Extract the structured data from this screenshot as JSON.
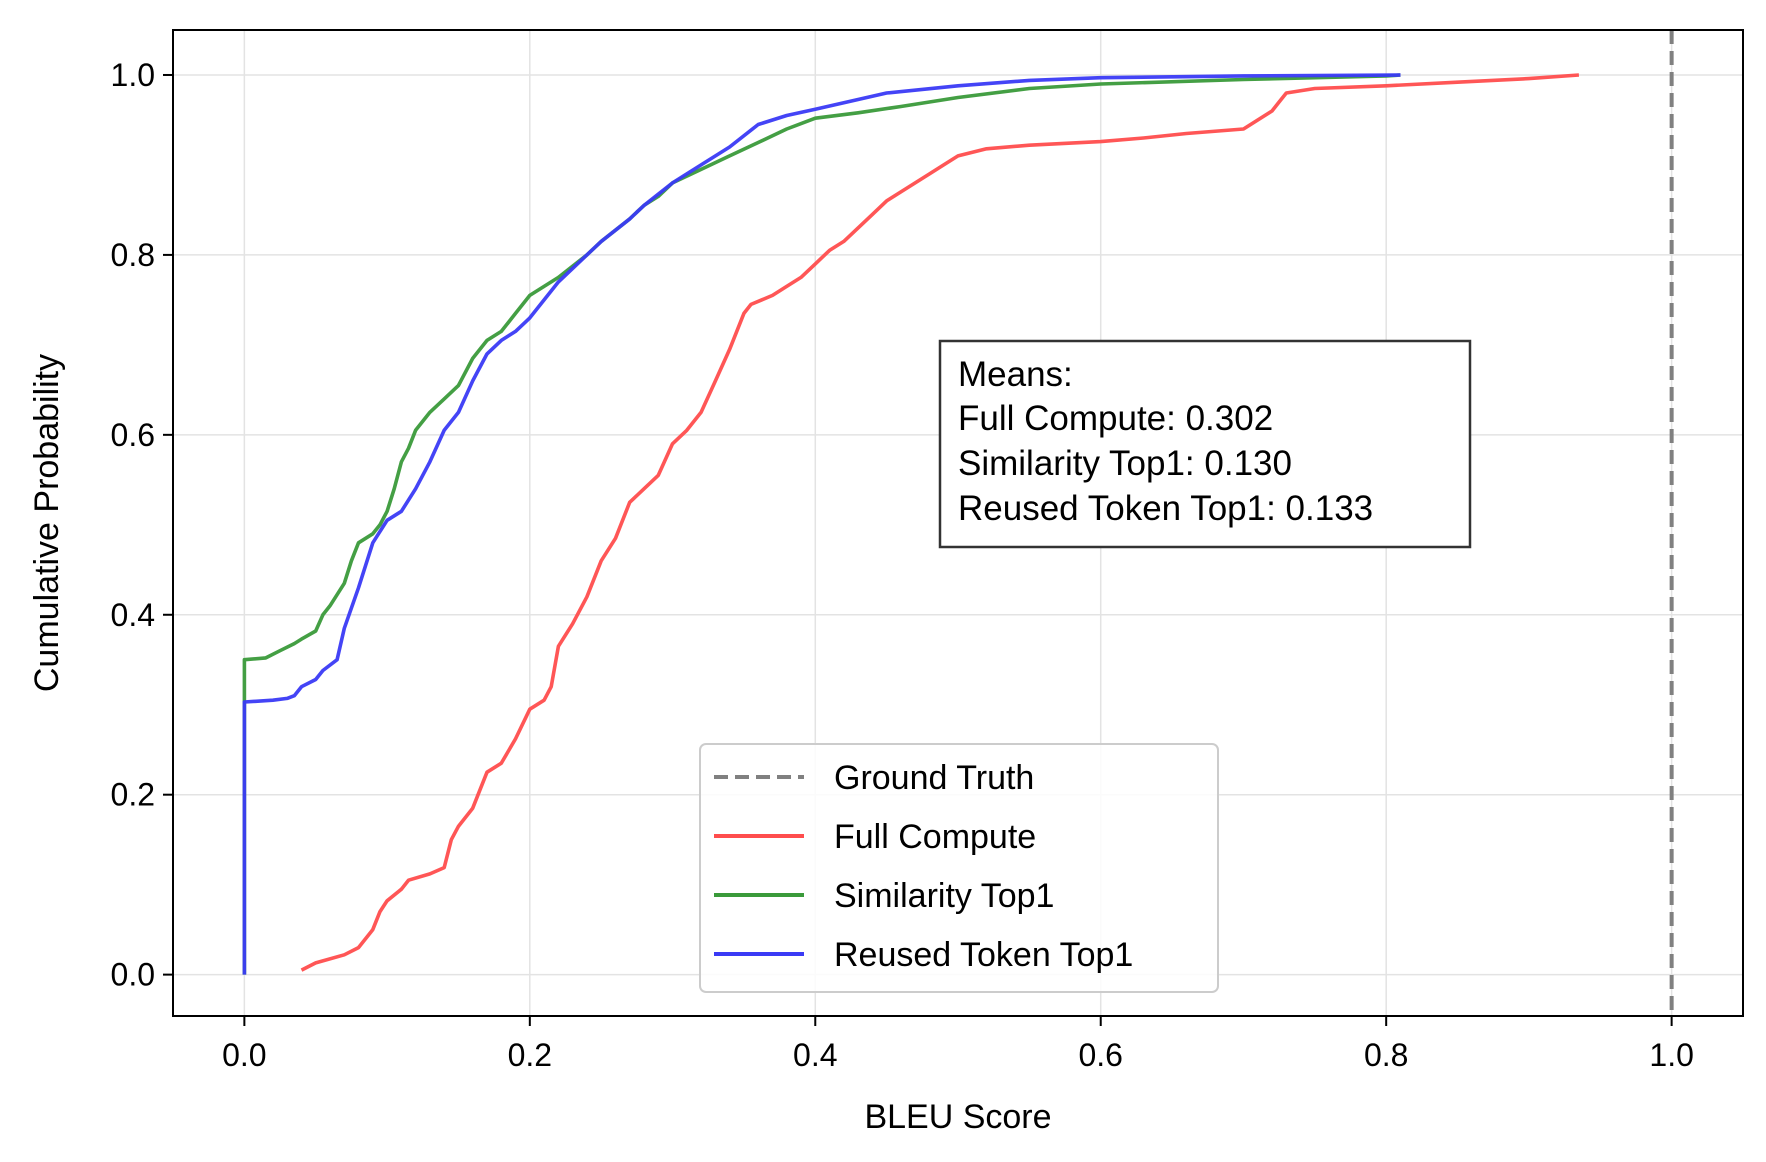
{
  "chart_data": {
    "type": "line",
    "title": "",
    "xlabel": "BLEU Score",
    "ylabel": "Cumulative Probability",
    "xlim": [
      -0.05,
      1.05
    ],
    "ylim": [
      -0.046,
      1.05
    ],
    "xticks": [
      "0.0",
      "0.2",
      "0.4",
      "0.6",
      "0.8",
      "1.0"
    ],
    "yticks": [
      "0.0",
      "0.2",
      "0.4",
      "0.6",
      "0.8",
      "1.0"
    ],
    "grid": true,
    "legend_position": "lower-center",
    "ground_truth": {
      "name": "Ground Truth",
      "x": 1.0,
      "color": "#808080",
      "style": "dashed"
    },
    "series": [
      {
        "name": "Full Compute",
        "color": "#ff4d4d",
        "x": [
          0.04,
          0.05,
          0.07,
          0.08,
          0.09,
          0.095,
          0.1,
          0.11,
          0.115,
          0.13,
          0.14,
          0.145,
          0.15,
          0.16,
          0.17,
          0.18,
          0.19,
          0.2,
          0.21,
          0.215,
          0.22,
          0.23,
          0.24,
          0.25,
          0.26,
          0.27,
          0.28,
          0.29,
          0.3,
          0.31,
          0.32,
          0.33,
          0.34,
          0.35,
          0.355,
          0.37,
          0.38,
          0.39,
          0.4,
          0.41,
          0.42,
          0.43,
          0.44,
          0.45,
          0.46,
          0.47,
          0.48,
          0.49,
          0.5,
          0.52,
          0.55,
          0.6,
          0.63,
          0.66,
          0.7,
          0.72,
          0.725,
          0.73,
          0.75,
          0.8,
          0.85,
          0.9,
          0.935
        ],
        "values": [
          0.005,
          0.013,
          0.022,
          0.03,
          0.05,
          0.07,
          0.082,
          0.095,
          0.105,
          0.112,
          0.119,
          0.15,
          0.165,
          0.185,
          0.225,
          0.235,
          0.262,
          0.295,
          0.305,
          0.32,
          0.365,
          0.39,
          0.42,
          0.46,
          0.485,
          0.525,
          0.54,
          0.555,
          0.59,
          0.605,
          0.625,
          0.66,
          0.695,
          0.735,
          0.745,
          0.755,
          0.765,
          0.775,
          0.79,
          0.805,
          0.815,
          0.83,
          0.845,
          0.86,
          0.87,
          0.88,
          0.89,
          0.9,
          0.91,
          0.918,
          0.922,
          0.926,
          0.93,
          0.935,
          0.94,
          0.96,
          0.97,
          0.98,
          0.985,
          0.988,
          0.992,
          0.996,
          1.0
        ]
      },
      {
        "name": "Similarity Top1",
        "color": "#3a9a3a",
        "x": [
          0.0,
          0.0,
          0.015,
          0.025,
          0.035,
          0.04,
          0.05,
          0.055,
          0.06,
          0.07,
          0.075,
          0.08,
          0.09,
          0.095,
          0.1,
          0.105,
          0.11,
          0.115,
          0.12,
          0.13,
          0.14,
          0.15,
          0.16,
          0.17,
          0.18,
          0.19,
          0.2,
          0.21,
          0.22,
          0.24,
          0.25,
          0.27,
          0.28,
          0.29,
          0.3,
          0.32,
          0.34,
          0.36,
          0.38,
          0.4,
          0.43,
          0.46,
          0.5,
          0.55,
          0.6,
          0.7,
          0.8,
          0.81
        ],
        "values": [
          0.0,
          0.35,
          0.352,
          0.36,
          0.368,
          0.373,
          0.382,
          0.4,
          0.41,
          0.435,
          0.46,
          0.48,
          0.49,
          0.5,
          0.515,
          0.54,
          0.57,
          0.585,
          0.605,
          0.625,
          0.64,
          0.655,
          0.685,
          0.705,
          0.715,
          0.735,
          0.755,
          0.765,
          0.775,
          0.8,
          0.815,
          0.84,
          0.855,
          0.865,
          0.88,
          0.895,
          0.91,
          0.925,
          0.94,
          0.952,
          0.958,
          0.965,
          0.975,
          0.985,
          0.99,
          0.995,
          0.999,
          1.0
        ]
      },
      {
        "name": "Reused Token Top1",
        "color": "#3a3af5",
        "x": [
          0.0,
          0.0,
          0.02,
          0.03,
          0.035,
          0.04,
          0.05,
          0.055,
          0.065,
          0.07,
          0.08,
          0.09,
          0.1,
          0.11,
          0.12,
          0.13,
          0.14,
          0.15,
          0.16,
          0.17,
          0.18,
          0.19,
          0.2,
          0.21,
          0.22,
          0.24,
          0.25,
          0.27,
          0.28,
          0.3,
          0.32,
          0.34,
          0.36,
          0.38,
          0.4,
          0.45,
          0.5,
          0.55,
          0.6,
          0.7,
          0.81
        ],
        "values": [
          0.0,
          0.303,
          0.305,
          0.307,
          0.31,
          0.32,
          0.328,
          0.338,
          0.35,
          0.385,
          0.43,
          0.48,
          0.505,
          0.515,
          0.54,
          0.57,
          0.605,
          0.625,
          0.66,
          0.69,
          0.705,
          0.715,
          0.73,
          0.75,
          0.77,
          0.8,
          0.815,
          0.84,
          0.855,
          0.88,
          0.9,
          0.92,
          0.945,
          0.955,
          0.962,
          0.98,
          0.988,
          0.994,
          0.997,
          0.999,
          1.0
        ]
      }
    ],
    "annotation": {
      "lines": [
        "Means:",
        "Full Compute: 0.302",
        "Similarity Top1: 0.130",
        "Reused Token Top1: 0.133"
      ]
    }
  }
}
